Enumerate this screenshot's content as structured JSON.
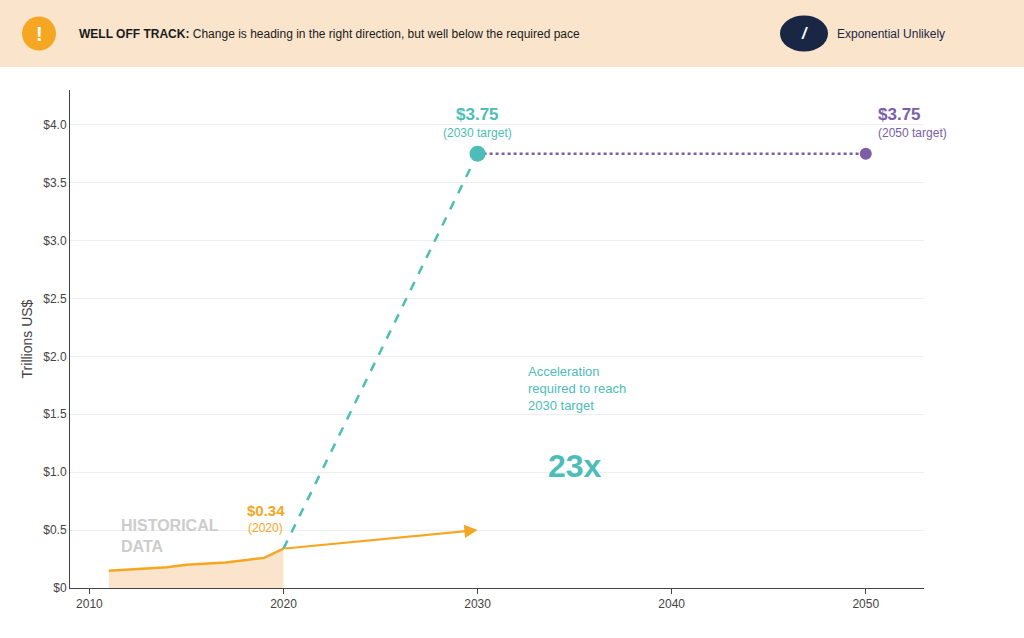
{
  "chart_data": {
    "type": "line",
    "header": {
      "color": "#FAE5CC",
      "icon": "!",
      "icon_color": "#F5A623",
      "bold_text": "WELL OFF TRACK:",
      "text": " Change is heading in the right direction, but well below the required pace",
      "badge_icon": "/",
      "badge_text": "Exponential Unlikely",
      "badge_color": "#1a2744"
    },
    "y_label": "Trillions US$",
    "xlim": [
      2009,
      2053
    ],
    "ylim": [
      0,
      4.3
    ],
    "xticks": [
      2010,
      2020,
      2030,
      2040,
      2050
    ],
    "yticks": [
      {
        "value": 0,
        "label": "$0"
      },
      {
        "value": 0.5,
        "label": "$0.5"
      },
      {
        "value": 1.0,
        "label": "$1.0"
      },
      {
        "value": 1.5,
        "label": "$1.5"
      },
      {
        "value": 2.0,
        "label": "$2.0"
      },
      {
        "value": 2.5,
        "label": "$2.5"
      },
      {
        "value": 3.0,
        "label": "$3.0"
      },
      {
        "value": 3.5,
        "label": "$3.5"
      },
      {
        "value": 4.0,
        "label": "$4.0"
      }
    ],
    "grid": "y",
    "series": [
      {
        "type": "area",
        "color": "#F5A623",
        "fill_color": "#FAE5CC",
        "x": [
          2011,
          2012,
          2013,
          2014,
          2015,
          2016,
          2017,
          2018,
          2019,
          2020
        ],
        "values": [
          0.15,
          0.16,
          0.17,
          0.18,
          0.2,
          0.21,
          0.22,
          0.24,
          0.26,
          0.34
        ]
      },
      {
        "type": "arrow",
        "color": "#F5A623",
        "x": [
          2020,
          2030
        ],
        "values": [
          0.34,
          0.5
        ]
      },
      {
        "type": "line",
        "line_style": "dashed",
        "color": "#4DBDB8",
        "x": [
          2020,
          2030
        ],
        "values": [
          0.34,
          3.75
        ]
      },
      {
        "type": "line",
        "line_style": "dotted",
        "color": "#7B5EA7",
        "x": [
          2030,
          2050
        ],
        "values": [
          3.75,
          3.75
        ]
      },
      {
        "type": "scatter",
        "marker": "circle",
        "color": "#4DBDB8",
        "x": [
          2030
        ],
        "values": [
          3.75
        ]
      },
      {
        "type": "scatter",
        "marker": "circle",
        "color": "#7B5EA7",
        "x": [
          2050
        ],
        "values": [
          3.75
        ]
      }
    ],
    "annotations": [
      {
        "text": "$0.34",
        "note": "(2020)",
        "x": 2020,
        "y": 0.34,
        "color": "#F5A623"
      },
      {
        "text": "$3.75",
        "note": "(2030 target)",
        "x": 2030,
        "y": 3.75,
        "color": "#4DBDB8"
      },
      {
        "text": "$3.75",
        "note": "(2050 target)",
        "x": 2050,
        "y": 3.75,
        "color": "#7B5EA7"
      }
    ],
    "accel_note": {
      "text": "Acceleration\nrequired to reach\n2030 target",
      "value_text": "23x",
      "color": "#4DBDB8"
    },
    "area_label": {
      "text": "HISTORICAL\nDATA",
      "color": "#cccccc"
    }
  }
}
